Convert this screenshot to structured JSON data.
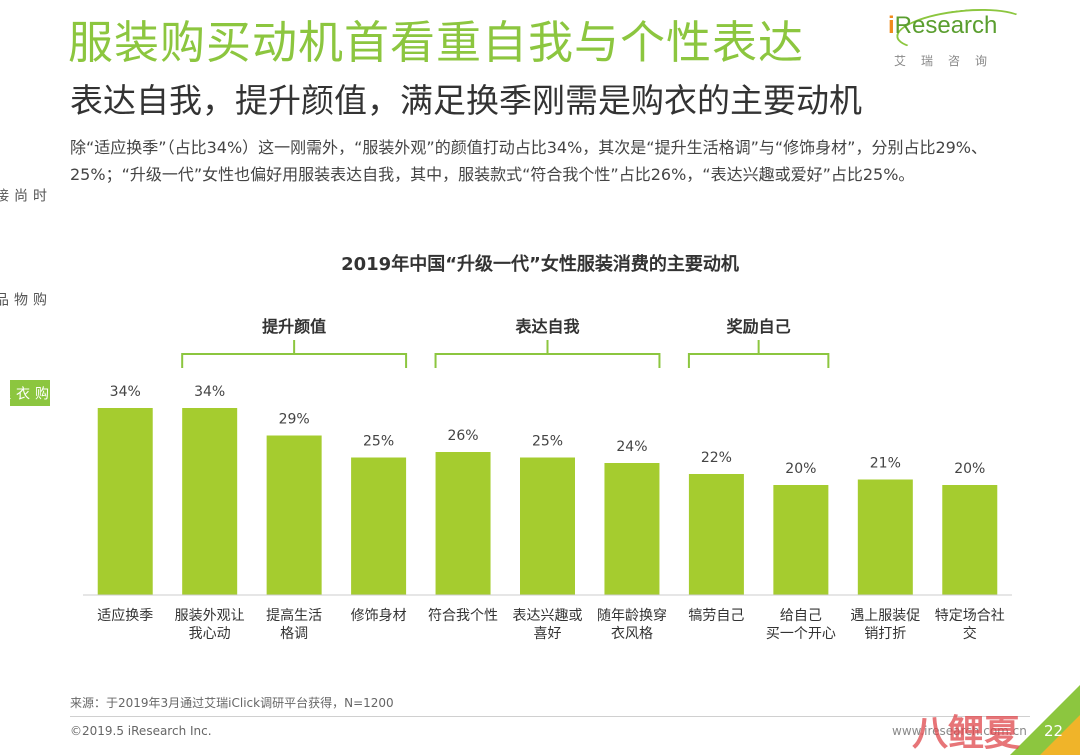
{
  "header": {
    "title": "服装购买动机首看重自我与个性表达",
    "subtitle": "表达自我，提升颜值，满足换季刚需是购衣的主要动机",
    "intro": "除“适应换季”（占比34%）这一刚需外，“服装外观”的颜值打动占比34%，其次是“提升生活格调”与“修饰身材”，分别占比29%、25%；“升级一代”女性也偏好用服装表达自我，其中，服装款式“符合我个性”占比26%，“表达兴趣或爱好”占比25%。"
  },
  "logo": {
    "prefix": "i",
    "rest": "Research",
    "sub": "艾瑞咨询"
  },
  "sidenav": {
    "items": [
      {
        "label": "时尚接触",
        "active": false
      },
      {
        "label": "购物品类",
        "active": false
      },
      {
        "label": "购衣理念",
        "active": true
      }
    ]
  },
  "colors": {
    "accent": "#8cc63f",
    "bar": "#a5cc2f",
    "text": "#333333"
  },
  "chart_data": {
    "type": "bar",
    "title": "2019年中国“升级一代”女性服装消费的主要动机",
    "categories": [
      [
        "适应换季"
      ],
      [
        "服装外观让",
        "我心动"
      ],
      [
        "提高生活",
        "格调"
      ],
      [
        "修饰身材"
      ],
      [
        "符合我个性"
      ],
      [
        "表达兴趣或",
        "喜好"
      ],
      [
        "随年龄换穿",
        "衣风格"
      ],
      [
        "犒劳自己"
      ],
      [
        "给自己",
        "买一个开心"
      ],
      [
        "遇上服装促",
        "销打折"
      ],
      [
        "特定场合社",
        "交"
      ]
    ],
    "values": [
      34,
      34,
      29,
      25,
      26,
      25,
      24,
      22,
      20,
      21,
      20
    ],
    "value_suffix": "%",
    "groups": [
      {
        "label": "提升颜值",
        "from": 1,
        "to": 3
      },
      {
        "label": "表达自我",
        "from": 4,
        "to": 6
      },
      {
        "label": "奖励自己",
        "from": 7,
        "to": 8
      }
    ]
  },
  "footer": {
    "source": "来源：于2019年3月通过艾瑞iClick调研平台获得，N=1200",
    "copyright": "©2019.5 iResearch Inc.",
    "website": "www.iresearch.com.cn",
    "page": "22",
    "watermark": "八鲤夏"
  }
}
